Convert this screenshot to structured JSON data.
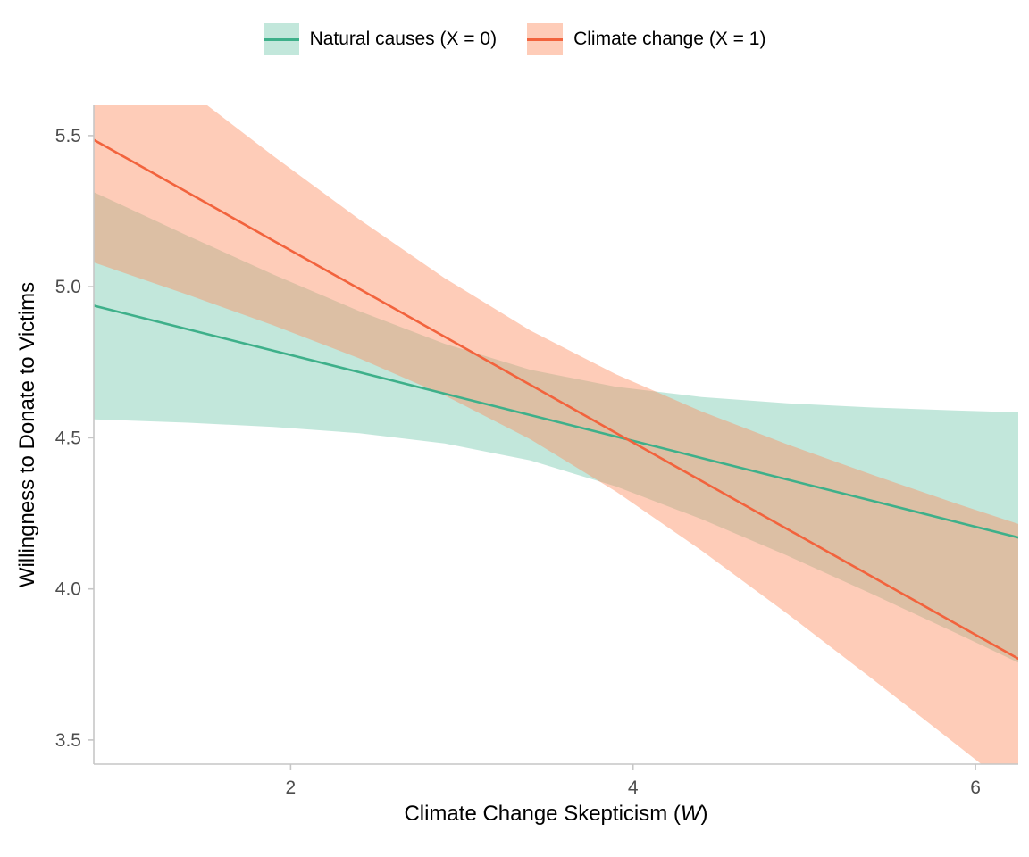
{
  "chart_data": {
    "type": "line",
    "title": "",
    "xlabel_prefix": "Climate Change Skepticism (",
    "xlabel_var": "W",
    "xlabel_suffix": ")",
    "ylabel": "Willingness to Donate to Victims",
    "xlim": [
      0.85,
      6.25
    ],
    "ylim": [
      3.42,
      5.6
    ],
    "grid": false,
    "legend_position": "top",
    "x_ticks": [
      {
        "v": 2,
        "label": "2"
      },
      {
        "v": 4,
        "label": "4"
      },
      {
        "v": 6,
        "label": "6"
      }
    ],
    "y_ticks": [
      {
        "v": 3.5,
        "label": "3.5"
      },
      {
        "v": 4.0,
        "label": "4.0"
      },
      {
        "v": 4.5,
        "label": "4.5"
      },
      {
        "v": 5.0,
        "label": "5.0"
      },
      {
        "v": 5.5,
        "label": "5.5"
      }
    ],
    "series": [
      {
        "label": "Natural causes (X = 0)",
        "line_color": "#3eb08a",
        "fill_color": "#66c2a5",
        "fill_opacity": 0.4,
        "points": [
          {
            "x": 0.85,
            "y": 4.937,
            "lo": 4.561,
            "hi": 5.313
          },
          {
            "x": 1.4,
            "y": 4.859,
            "lo": 4.55,
            "hi": 5.168
          },
          {
            "x": 1.9,
            "y": 4.788,
            "lo": 4.536,
            "hi": 5.04
          },
          {
            "x": 2.4,
            "y": 4.717,
            "lo": 4.515,
            "hi": 4.919
          },
          {
            "x": 2.9,
            "y": 4.646,
            "lo": 4.481,
            "hi": 4.811
          },
          {
            "x": 3.4,
            "y": 4.575,
            "lo": 4.425,
            "hi": 4.725
          },
          {
            "x": 3.9,
            "y": 4.504,
            "lo": 4.339,
            "hi": 4.669
          },
          {
            "x": 4.4,
            "y": 4.433,
            "lo": 4.231,
            "hi": 4.635
          },
          {
            "x": 4.9,
            "y": 4.362,
            "lo": 4.11,
            "hi": 4.614
          },
          {
            "x": 5.4,
            "y": 4.291,
            "lo": 3.982,
            "hi": 4.6
          },
          {
            "x": 5.9,
            "y": 4.22,
            "lo": 3.85,
            "hi": 4.59
          },
          {
            "x": 6.25,
            "y": 4.17,
            "lo": 3.756,
            "hi": 4.584
          }
        ]
      },
      {
        "label": "Climate change (X = 1)",
        "line_color": "#f2633d",
        "fill_color": "#fc8d62",
        "fill_opacity": 0.45,
        "points": [
          {
            "x": 0.85,
            "y": 5.486,
            "lo": 5.08,
            "hi": 5.892
          },
          {
            "x": 1.4,
            "y": 5.311,
            "lo": 4.973,
            "hi": 5.649
          },
          {
            "x": 1.9,
            "y": 5.152,
            "lo": 4.872,
            "hi": 5.432
          },
          {
            "x": 2.4,
            "y": 4.993,
            "lo": 4.763,
            "hi": 5.223
          },
          {
            "x": 2.9,
            "y": 4.834,
            "lo": 4.64,
            "hi": 5.028
          },
          {
            "x": 3.4,
            "y": 4.675,
            "lo": 4.495,
            "hi": 4.855
          },
          {
            "x": 3.9,
            "y": 4.516,
            "lo": 4.322,
            "hi": 4.71
          },
          {
            "x": 4.4,
            "y": 4.357,
            "lo": 4.127,
            "hi": 4.587
          },
          {
            "x": 4.9,
            "y": 4.198,
            "lo": 3.918,
            "hi": 4.478
          },
          {
            "x": 5.4,
            "y": 4.039,
            "lo": 3.701,
            "hi": 4.377
          },
          {
            "x": 5.9,
            "y": 3.88,
            "lo": 3.48,
            "hi": 4.28
          },
          {
            "x": 6.25,
            "y": 3.769,
            "lo": 3.323,
            "hi": 4.215
          }
        ]
      }
    ],
    "axis_color": "#c6c6c6",
    "tick_label_color": "#4d4d4d"
  }
}
